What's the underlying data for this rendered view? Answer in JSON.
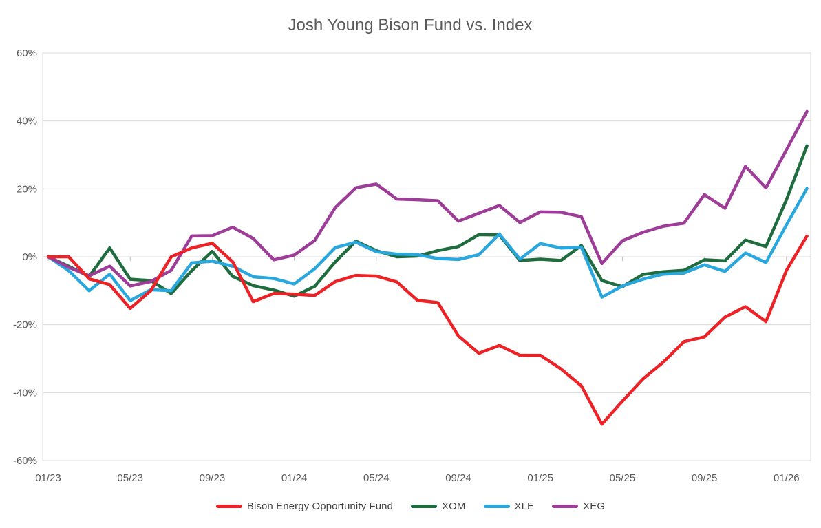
{
  "chart_data": {
    "type": "line",
    "title": "Josh Young Bison Fund vs. Index",
    "x_months": [
      "01/23",
      "02/23",
      "03/23",
      "04/23",
      "05/23",
      "06/23",
      "07/23",
      "08/23",
      "09/23",
      "10/23",
      "11/23",
      "12/23",
      "01/24",
      "02/24",
      "03/24",
      "04/24",
      "05/24",
      "06/24",
      "07/24",
      "08/24",
      "09/24",
      "10/24",
      "11/24",
      "12/24",
      "01/25",
      "02/25",
      "03/25",
      "04/25",
      "05/25",
      "06/25",
      "07/25",
      "08/25",
      "09/25",
      "10/25",
      "11/25",
      "12/25",
      "01/26",
      "02/26"
    ],
    "x_tick_labels": [
      "01/23",
      "05/23",
      "09/23",
      "01/24",
      "05/24",
      "09/24",
      "01/25",
      "05/25",
      "09/25",
      "01/26"
    ],
    "x_tick_indices": [
      0,
      4,
      8,
      12,
      16,
      20,
      24,
      28,
      32,
      36
    ],
    "y_axis": {
      "min": -60,
      "max": 60,
      "step": 20,
      "unit": "%",
      "tick_labels": [
        "60%",
        "40%",
        "20%",
        "0%",
        "-20%",
        "-40%",
        "-60%"
      ]
    },
    "grid": true,
    "legend_position": "bottom",
    "series": [
      {
        "name": "Bison Energy Opportunity Fund",
        "color": "#ec2227",
        "values": [
          0,
          0,
          -6.5,
          -8.2,
          -15.2,
          -10,
          0,
          2.6,
          4,
          -1.5,
          -13.2,
          -10.8,
          -11,
          -11.4,
          -7.3,
          -5.5,
          -5.7,
          -7.4,
          -12.8,
          -13.5,
          -23.3,
          -28.4,
          -26.1,
          -29,
          -29,
          -33,
          -38,
          -49.3,
          -42.5,
          -36,
          -31,
          -25,
          -23.6,
          -17.8,
          -14.7,
          -19.1,
          -4,
          6.1
        ]
      },
      {
        "name": "XOM",
        "color": "#1f6c3f",
        "values": [
          0,
          -2.8,
          -5.8,
          2.6,
          -6.6,
          -7,
          -10.8,
          -4.1,
          1.6,
          -5.8,
          -8.5,
          -9.8,
          -11.6,
          -8.7,
          -1.5,
          4.6,
          1.8,
          0,
          0.2,
          1.8,
          3,
          6.5,
          6.4,
          -1.1,
          -0.7,
          -1.1,
          3.3,
          -7,
          -8.8,
          -5.2,
          -4.4,
          -4,
          -0.9,
          -1.2,
          4.9,
          3,
          16.8,
          32.7
        ]
      },
      {
        "name": "XLE",
        "color": "#2aa7dd",
        "values": [
          0,
          -4.1,
          -10,
          -5.1,
          -12.9,
          -9.7,
          -10,
          -1.8,
          -1.3,
          -2.8,
          -5.9,
          -6.4,
          -8,
          -3.5,
          2.7,
          4.3,
          1.5,
          0.8,
          0.6,
          -0.5,
          -0.8,
          0.6,
          6.7,
          -0.7,
          3.9,
          2.6,
          2.8,
          -11.9,
          -8.6,
          -6.6,
          -5.1,
          -4.8,
          -2.4,
          -4.3,
          1.1,
          -1.7,
          9.4,
          20.1
        ]
      },
      {
        "name": "XEG",
        "color": "#9d3d98",
        "values": [
          0,
          -3.1,
          -5.6,
          -2.8,
          -8.6,
          -7.3,
          -4,
          6.1,
          6.2,
          8.7,
          5.4,
          -0.9,
          0.5,
          4.8,
          14.5,
          20.3,
          21.4,
          17,
          16.8,
          16.5,
          10.5,
          12.8,
          15.1,
          10.1,
          13.2,
          13.1,
          11.8,
          -2,
          4.7,
          7.2,
          9,
          9.9,
          18.3,
          14.3,
          26.6,
          20.3,
          31.5,
          42.8
        ]
      }
    ],
    "colors": {
      "gridline": "#d9d9d9",
      "plot_border": "#d9d9d9",
      "tick_mark": "#bfbfbf",
      "axis_text": "#595959",
      "title_text": "#595959",
      "legend_text": "#3f3f3f",
      "background": "#ffffff"
    }
  }
}
